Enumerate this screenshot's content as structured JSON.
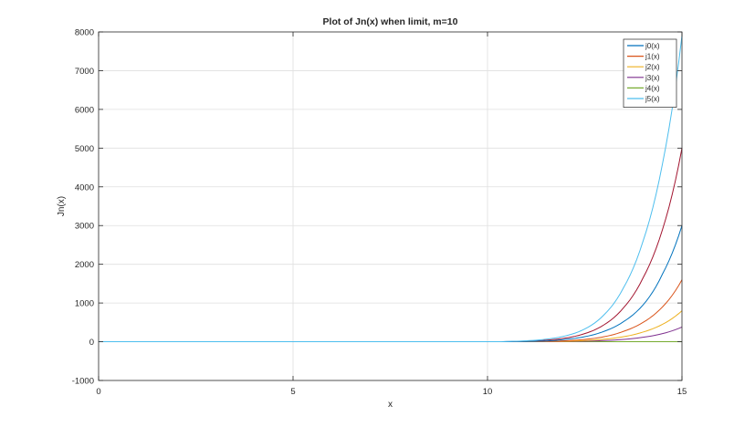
{
  "chart_data": {
    "type": "line",
    "title": "Plot of Jn(x) when limit, m=10",
    "xlabel": "x",
    "ylabel": "Jn(x)",
    "xlim": [
      0,
      15
    ],
    "ylim": [
      -1000,
      8000
    ],
    "xticks": [
      0,
      5,
      10,
      15
    ],
    "yticks": [
      -1000,
      0,
      1000,
      2000,
      3000,
      4000,
      5000,
      6000,
      7000,
      8000
    ],
    "grid": true,
    "legend_position": "top-right",
    "x": [
      10,
      10.5,
      11,
      11.5,
      12,
      12.5,
      13,
      13.5,
      14,
      14.5,
      15
    ],
    "series": [
      {
        "name": "j0(x)",
        "color": "#0072BD",
        "values": [
          0,
          2,
          8,
          20,
          60,
          130,
          270,
          520,
          950,
          1750,
          3000
        ]
      },
      {
        "name": "j1(x)",
        "color": "#D95319",
        "values": [
          0,
          1,
          3,
          9,
          25,
          60,
          130,
          270,
          500,
          900,
          1600
        ]
      },
      {
        "name": "j2(x)",
        "color": "#EDB120",
        "values": [
          0,
          0,
          2,
          5,
          12,
          30,
          65,
          130,
          250,
          450,
          800
        ]
      },
      {
        "name": "j3(x)",
        "color": "#7E2F8E",
        "values": [
          0,
          0,
          1,
          2,
          6,
          14,
          30,
          60,
          115,
          210,
          380
        ]
      },
      {
        "name": "j4(x)",
        "color": "#77AC30",
        "values": [
          0,
          0,
          0,
          0,
          0,
          0,
          0,
          0,
          0,
          0,
          0
        ]
      },
      {
        "name": "j5(x)",
        "color": "#4DBEEE",
        "values": [
          0,
          8,
          25,
          65,
          150,
          330,
          700,
          1400,
          2600,
          4600,
          7900
        ]
      },
      {
        "name": "",
        "color": "#A2142F",
        "values": [
          0,
          4,
          15,
          40,
          95,
          210,
          440,
          880,
          1650,
          2900,
          5000
        ]
      }
    ]
  }
}
